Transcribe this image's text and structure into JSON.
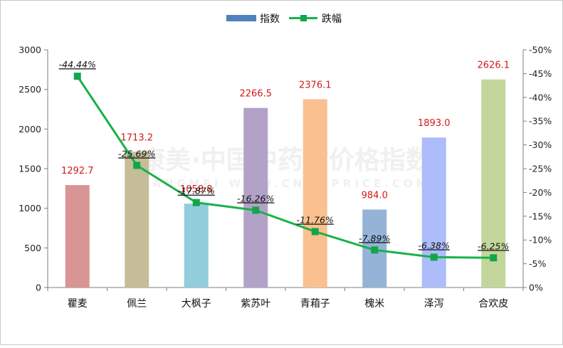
{
  "legend": {
    "bar_label": "指数",
    "line_label": "跌幅"
  },
  "watermark": {
    "main": "康美·中国中药材价格指数",
    "sub": "KANGMEI WWW.CNKMPRICE.COM"
  },
  "colors": {
    "line": "#18b24a",
    "marker": "#13a54a",
    "value_label": "#d21a1a",
    "legend_bar": "#4f81bd"
  },
  "chart_data": {
    "type": "bar",
    "categories": [
      "瞿麦",
      "佩兰",
      "大枫子",
      "紫苏叶",
      "青葙子",
      "槐米",
      "泽泻",
      "合欢皮"
    ],
    "series": [
      {
        "name": "指数",
        "type": "bar",
        "axis": "left",
        "values": [
          1292.7,
          1713.2,
          1058.8,
          2266.5,
          2376.1,
          984.0,
          1893.0,
          2626.1
        ],
        "value_labels": [
          "1292.7",
          "1713.2",
          "1058.8",
          "2266.5",
          "2376.1",
          "984.0",
          "1893.0",
          "2626.1"
        ],
        "colors": [
          "#d99594",
          "#c4bd97",
          "#92cddc",
          "#b2a2c7",
          "#fac090",
          "#95b3d7",
          "#adbcfb",
          "#c3d69b"
        ]
      },
      {
        "name": "跌幅",
        "type": "line",
        "axis": "right",
        "values": [
          -44.44,
          -25.69,
          -17.87,
          -16.26,
          -11.76,
          -7.89,
          -6.38,
          -6.25
        ],
        "value_labels": [
          "-44.44%",
          "-25.69%",
          "-17.87%",
          "-16.26%",
          "-11.76%",
          "-7.89%",
          "-6.38%",
          "-6.25%"
        ]
      }
    ],
    "y_left": {
      "range": [
        0,
        3000
      ],
      "ticks": [
        0,
        500,
        1000,
        1500,
        2000,
        2500,
        3000
      ],
      "tick_labels": [
        "0",
        "500",
        "1000",
        "1500",
        "2000",
        "2500",
        "3000"
      ]
    },
    "y_right": {
      "range": [
        0,
        -50
      ],
      "ticks": [
        0,
        -5,
        -10,
        -15,
        -20,
        -25,
        -30,
        -35,
        -40,
        -45,
        -50
      ],
      "tick_labels": [
        "0%",
        "-5%",
        "-10%",
        "-15%",
        "-20%",
        "-25%",
        "-30%",
        "-35%",
        "-40%",
        "-45%",
        "-50%"
      ]
    },
    "grid": false,
    "legend_position": "top-center"
  }
}
